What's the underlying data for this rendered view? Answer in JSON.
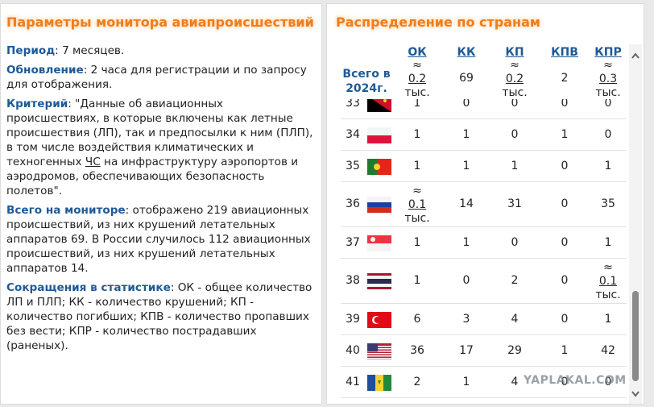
{
  "left": {
    "title": "Параметры монитора авиапроисшествий",
    "sections": [
      {
        "label": "Период",
        "text": ": 7 месяцев."
      },
      {
        "label": "Обновление",
        "text": ": 2 часа для регистрации и по запросу для отображения."
      },
      {
        "label": "Критерий",
        "text": ": \"Данные об авиационных происшествиях, в которые включены как летные происшествия (ЛП), так и предпосылки к ним (ПЛП), в том числе воздействия климатических и техногенных ",
        "link": "ЧС",
        "tail": " на инфраструктуру аэропортов и аэродромов, обеспечивающих безопасность полетов\"."
      },
      {
        "label": "Всего на мониторе",
        "text": ": отображено 219 авиационных происшествий, из них крушений летательных аппаратов 69. В России случилось 112 авиационных происшествий, из них крушений летательных аппаратов 14."
      },
      {
        "label": "Сокращения в статистике",
        "text": ": ОК - общее количество ЛП и ПЛП; КК - количество крушений; КП - количество погибших; КПВ - количество пропавших без вести; КПР - количество пострадавших (раненых)."
      }
    ]
  },
  "right": {
    "title": "Распределение по странам",
    "columns": [
      "ОК",
      "КК",
      "КП",
      "КПВ",
      "КПР"
    ],
    "total": {
      "label": "Всего в 2024г.",
      "cells": [
        {
          "approx": "≈",
          "value": 0.2,
          "unit": "тыс."
        },
        69,
        {
          "approx": "≈",
          "value": 0.2,
          "unit": "тыс."
        },
        2,
        {
          "approx": "≈",
          "value": 0.3,
          "unit": "тыс."
        }
      ]
    },
    "rows": [
      {
        "num": 33,
        "cells": [
          1,
          0,
          0,
          0,
          0
        ]
      },
      {
        "num": 34,
        "cells": [
          1,
          1,
          0,
          1,
          0
        ]
      },
      {
        "num": 35,
        "cells": [
          1,
          1,
          1,
          0,
          1
        ]
      },
      {
        "num": 36,
        "cells": [
          {
            "approx": "≈",
            "value": 0.1,
            "unit": "тыс."
          },
          14,
          31,
          0,
          35
        ]
      },
      {
        "num": 37,
        "cells": [
          1,
          1,
          0,
          0,
          1
        ]
      },
      {
        "num": 38,
        "cells": [
          1,
          0,
          2,
          0,
          {
            "approx": "≈",
            "value": 0.1,
            "unit": "тыс."
          }
        ]
      },
      {
        "num": 39,
        "cells": [
          6,
          3,
          4,
          0,
          1
        ]
      },
      {
        "num": 40,
        "cells": [
          36,
          17,
          29,
          1,
          42
        ]
      },
      {
        "num": 41,
        "cells": [
          2,
          1,
          4,
          0,
          0
        ]
      }
    ]
  },
  "watermark": "YAPLAKAL.COM"
}
